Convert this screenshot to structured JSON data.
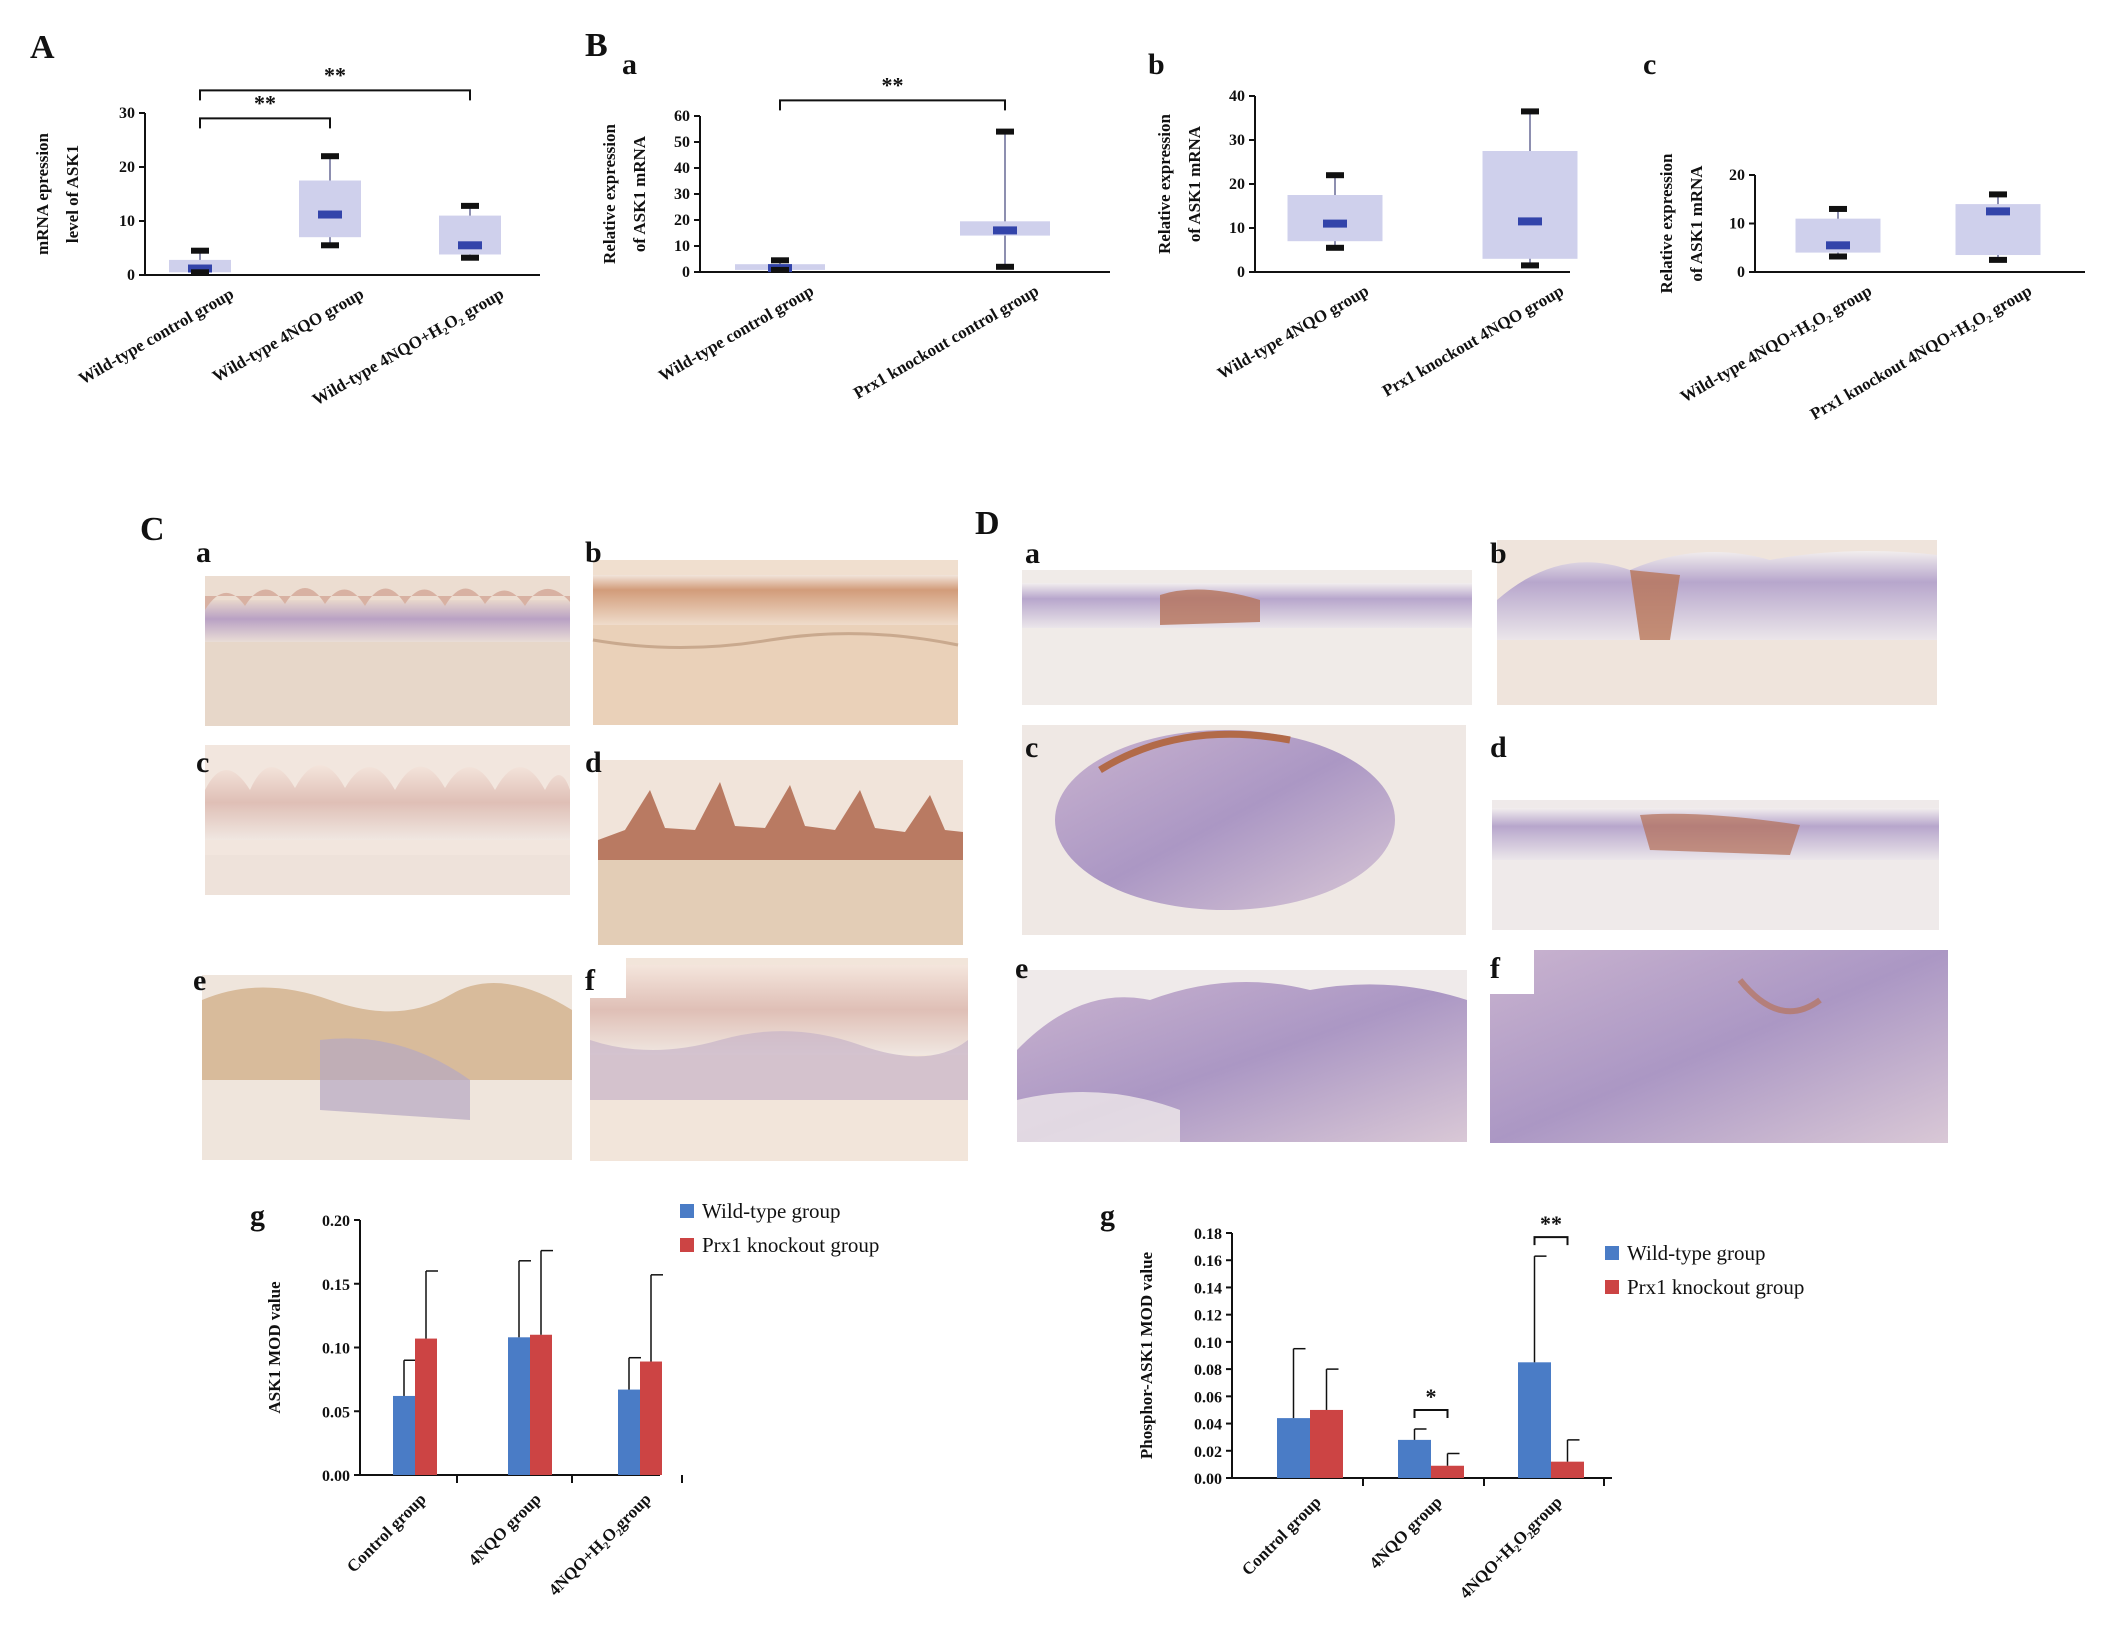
{
  "panels": {
    "A": "A",
    "B": "B",
    "C": "C",
    "D": "D",
    "Ba": "a",
    "Bb": "b",
    "Bc": "c",
    "Ca": "a",
    "Cb": "b",
    "Cc": "c",
    "Cd": "d",
    "Ce": "e",
    "Cf": "f",
    "Cg": "g",
    "Da": "a",
    "Db": "b",
    "Dc": "c",
    "Dd": "d",
    "De": "e",
    "Df": "f",
    "Dg": "g"
  },
  "colors": {
    "box": "#cfd0ec",
    "median": "#3344aa",
    "wild": "#4a7cc6",
    "ko": "#cc4444"
  },
  "chart_data": [
    {
      "id": "A",
      "type": "box",
      "ylabel_lines": [
        "mRNA epression",
        "level of ASK1"
      ],
      "ylim": [
        0,
        30
      ],
      "yticks": [
        "0",
        "10",
        "20",
        "30"
      ],
      "categories": [
        "Wild-type control group",
        "Wild-type 4NQO group",
        "Wild-type 4NQO+H₂O₂ group"
      ],
      "boxes": [
        {
          "min": 0.5,
          "q1": 0.5,
          "median": 1.2,
          "q3": 2.8,
          "max": 4.5
        },
        {
          "min": 5.5,
          "q1": 7.0,
          "median": 11.2,
          "q3": 17.5,
          "max": 22.0
        },
        {
          "min": 3.2,
          "q1": 3.8,
          "median": 5.5,
          "q3": 11.0,
          "max": 12.8
        }
      ],
      "significance": [
        {
          "from": 0,
          "to": 1,
          "label": "**",
          "level": 29.0
        },
        {
          "from": 0,
          "to": 2,
          "label": "**",
          "level": 34.2
        }
      ]
    },
    {
      "id": "Ba",
      "type": "box",
      "ylabel_lines": [
        "Relative expression",
        "of ASK1 mRNA"
      ],
      "ylim": [
        0,
        60
      ],
      "yticks": [
        "0",
        "10",
        "20",
        "30",
        "40",
        "50",
        "60"
      ],
      "categories": [
        "Wild-type control group",
        "Prx1 knockout control group"
      ],
      "boxes": [
        {
          "min": 0.8,
          "q1": 0.8,
          "median": 1.5,
          "q3": 3.0,
          "max": 4.5
        },
        {
          "min": 2.0,
          "q1": 14.0,
          "median": 16.0,
          "q3": 19.5,
          "max": 54.0
        }
      ],
      "significance": [
        {
          "from": 0,
          "to": 1,
          "label": "**",
          "level": 66.0
        }
      ]
    },
    {
      "id": "Bb",
      "type": "box",
      "ylabel_lines": [
        "Relative expression",
        "of ASK1 mRNA"
      ],
      "ylim": [
        0,
        40
      ],
      "yticks": [
        "0",
        "10",
        "20",
        "30",
        "40"
      ],
      "categories": [
        "Wild-type 4NQO group",
        "Prx1 knockout 4NQO group"
      ],
      "boxes": [
        {
          "min": 5.5,
          "q1": 7.0,
          "median": 11.0,
          "q3": 17.5,
          "max": 22.0
        },
        {
          "min": 1.5,
          "q1": 3.0,
          "median": 11.5,
          "q3": 27.5,
          "max": 36.5
        }
      ],
      "significance": []
    },
    {
      "id": "Bc",
      "type": "box",
      "ylabel_lines": [
        "Relative expression",
        "of ASK1 mRNA"
      ],
      "ylim": [
        0,
        20
      ],
      "yticks": [
        "0",
        "10",
        "20"
      ],
      "categories": [
        "Wild-type 4NQO+H₂O₂ group",
        "Prx1 knockout 4NQO+H₂O₂ group"
      ],
      "boxes": [
        {
          "min": 3.2,
          "q1": 4.0,
          "median": 5.5,
          "q3": 11.0,
          "max": 13.0
        },
        {
          "min": 2.5,
          "q1": 3.5,
          "median": 12.5,
          "q3": 14.0,
          "max": 16.0
        }
      ],
      "significance": []
    },
    {
      "id": "Cg",
      "type": "bar",
      "ylabel": "ASK1 MOD value",
      "ylim": [
        0,
        0.2
      ],
      "yticks": [
        "0.00",
        "0.05",
        "0.10",
        "0.15",
        "0.20"
      ],
      "categories": [
        "Control group",
        "4NQO group",
        "4NQO+H₂O₂group"
      ],
      "series": [
        {
          "name": "Wild-type group",
          "values": [
            0.062,
            0.108,
            0.067
          ],
          "errors": [
            0.028,
            0.06,
            0.025
          ]
        },
        {
          "name": "Prx1 knockout group",
          "values": [
            0.107,
            0.11,
            0.089
          ],
          "errors": [
            0.053,
            0.066,
            0.068
          ]
        }
      ],
      "legend": "top-right",
      "significance": []
    },
    {
      "id": "Dg",
      "type": "bar",
      "ylabel": "Phosphor-ASK1 MOD value",
      "ylim": [
        0,
        0.18
      ],
      "yticks": [
        "0.00",
        "0.02",
        "0.04",
        "0.06",
        "0.08",
        "0.10",
        "0.12",
        "0.14",
        "0.16",
        "0.18"
      ],
      "categories": [
        "Control group",
        "4NQO group",
        "4NQO+H₂O₂group"
      ],
      "series": [
        {
          "name": "Wild-type group",
          "values": [
            0.044,
            0.028,
            0.085
          ],
          "errors": [
            0.051,
            0.008,
            0.078
          ]
        },
        {
          "name": "Prx1 knockout group",
          "values": [
            0.05,
            0.009,
            0.012
          ],
          "errors": [
            0.03,
            0.009,
            0.016
          ]
        }
      ],
      "legend": "top-right",
      "significance": [
        {
          "category": 1,
          "label": "*",
          "level": 0.05
        },
        {
          "category": 2,
          "label": "**",
          "level": 0.177
        }
      ]
    }
  ]
}
